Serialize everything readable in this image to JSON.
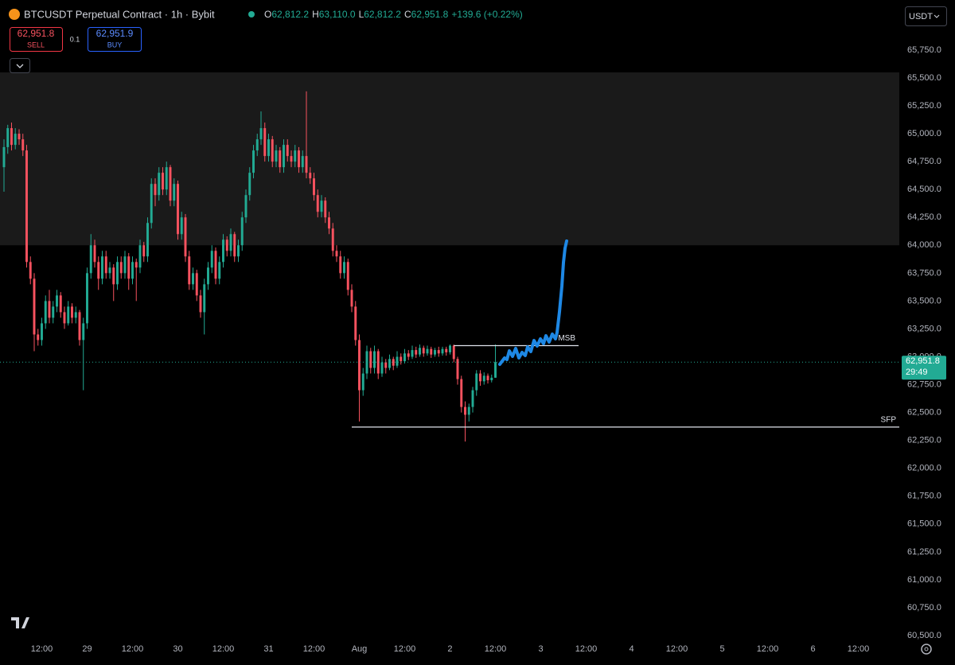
{
  "header": {
    "symbol": "BTCUSDT Perpetual Contract · 1h · Bybit",
    "o_label": "O",
    "o": "62,812.2",
    "h_label": "H",
    "h": "63,110.0",
    "l_label": "L",
    "l": "62,812.2",
    "c_label": "C",
    "c": "62,951.8",
    "change": "+139.6 (+0.22%)"
  },
  "trade": {
    "sell_price": "62,951.8",
    "sell": "SELL",
    "qty": "0.1",
    "buy_price": "62,951.9",
    "buy": "BUY"
  },
  "currency": "USDT",
  "chart_data": {
    "type": "candlestick",
    "up_color": "#22ab94",
    "down_color": "#f7525f",
    "ohlc": [
      [
        64700,
        64950,
        64480,
        64880
      ],
      [
        64880,
        65080,
        64820,
        65050
      ],
      [
        65050,
        65100,
        64850,
        64900
      ],
      [
        64900,
        65050,
        64860,
        65000
      ],
      [
        65000,
        65040,
        64900,
        64950
      ],
      [
        64950,
        65000,
        64800,
        64850
      ],
      [
        64850,
        64900,
        63800,
        63850
      ],
      [
        63850,
        63900,
        63650,
        63700
      ],
      [
        63700,
        63750,
        63050,
        63200
      ],
      [
        63200,
        63250,
        63100,
        63150
      ],
      [
        63150,
        63350,
        63100,
        63300
      ],
      [
        63300,
        63550,
        63250,
        63500
      ],
      [
        63500,
        63600,
        63300,
        63350
      ],
      [
        63350,
        63500,
        63300,
        63450
      ],
      [
        63450,
        63600,
        63400,
        63550
      ],
      [
        63550,
        63580,
        63350,
        63400
      ],
      [
        63400,
        63450,
        63250,
        63300
      ],
      [
        63300,
        63500,
        63280,
        63450
      ],
      [
        63450,
        63480,
        63300,
        63350
      ],
      [
        63350,
        63450,
        63300,
        63400
      ],
      [
        63400,
        63420,
        63100,
        63150
      ],
      [
        63150,
        63350,
        62700,
        63300
      ],
      [
        63300,
        63800,
        63250,
        63750
      ],
      [
        63750,
        64100,
        63700,
        64000
      ],
      [
        64000,
        64050,
        63800,
        63850
      ],
      [
        63850,
        63900,
        63600,
        63700
      ],
      [
        63700,
        63950,
        63650,
        63900
      ],
      [
        63900,
        63950,
        63700,
        63750
      ],
      [
        63750,
        63850,
        63700,
        63800
      ],
      [
        63800,
        63830,
        63500,
        63650
      ],
      [
        63650,
        63900,
        63600,
        63850
      ],
      [
        63850,
        63900,
        63700,
        63750
      ],
      [
        63750,
        63950,
        63700,
        63900
      ],
      [
        63900,
        63930,
        63600,
        63700
      ],
      [
        63700,
        63900,
        63650,
        63850
      ],
      [
        63850,
        63880,
        63500,
        63800
      ],
      [
        63800,
        64050,
        63750,
        64000
      ],
      [
        64000,
        64030,
        63850,
        63900
      ],
      [
        63900,
        64250,
        63850,
        64200
      ],
      [
        64200,
        64600,
        64150,
        64550
      ],
      [
        64550,
        64600,
        64350,
        64450
      ],
      [
        64450,
        64700,
        64400,
        64650
      ],
      [
        64650,
        64700,
        64450,
        64500
      ],
      [
        64500,
        64750,
        64450,
        64700
      ],
      [
        64700,
        64720,
        64350,
        64400
      ],
      [
        64400,
        64600,
        64350,
        64550
      ],
      [
        64550,
        64580,
        64050,
        64100
      ],
      [
        64100,
        64300,
        64050,
        64250
      ],
      [
        64250,
        64280,
        63850,
        63900
      ],
      [
        63900,
        63950,
        63600,
        63650
      ],
      [
        63650,
        63800,
        63600,
        63750
      ],
      [
        63750,
        63780,
        63500,
        63550
      ],
      [
        63550,
        63600,
        63350,
        63400
      ],
      [
        63400,
        63700,
        63200,
        63650
      ],
      [
        63650,
        63850,
        63600,
        63800
      ],
      [
        63800,
        64000,
        63750,
        63950
      ],
      [
        63950,
        63980,
        63650,
        63700
      ],
      [
        63700,
        63900,
        63650,
        63850
      ],
      [
        63850,
        64100,
        63800,
        64050
      ],
      [
        64050,
        64080,
        63900,
        63950
      ],
      [
        63950,
        64150,
        63900,
        64100
      ],
      [
        64100,
        64120,
        63850,
        63900
      ],
      [
        63900,
        64050,
        63850,
        64000
      ],
      [
        64000,
        64300,
        63950,
        64250
      ],
      [
        64250,
        64500,
        64200,
        64450
      ],
      [
        64450,
        64700,
        64400,
        64650
      ],
      [
        64650,
        64900,
        64600,
        64850
      ],
      [
        64850,
        65000,
        64800,
        64950
      ],
      [
        64950,
        65200,
        64900,
        65050
      ],
      [
        65050,
        65100,
        64750,
        64800
      ],
      [
        64800,
        65000,
        64750,
        64950
      ],
      [
        64950,
        64980,
        64700,
        64750
      ],
      [
        64750,
        64900,
        64700,
        64850
      ],
      [
        64850,
        64880,
        64650,
        64700
      ],
      [
        64700,
        64950,
        64650,
        64900
      ],
      [
        64900,
        64950,
        64750,
        64800
      ],
      [
        64800,
        64850,
        64700,
        64750
      ],
      [
        64750,
        64900,
        64700,
        64850
      ],
      [
        64850,
        64880,
        64650,
        64700
      ],
      [
        64700,
        64850,
        64650,
        64800
      ],
      [
        64800,
        65380,
        64600,
        64650
      ],
      [
        64650,
        64700,
        64550,
        64600
      ],
      [
        64600,
        64650,
        64400,
        64450
      ],
      [
        64450,
        64500,
        64250,
        64300
      ],
      [
        64300,
        64450,
        64250,
        64400
      ],
      [
        64400,
        64430,
        64200,
        64250
      ],
      [
        64250,
        64300,
        64100,
        64150
      ],
      [
        64150,
        64200,
        63900,
        63950
      ],
      [
        63950,
        64000,
        63850,
        63900
      ],
      [
        63900,
        63950,
        63700,
        63750
      ],
      [
        63750,
        63900,
        63700,
        63850
      ],
      [
        63850,
        63880,
        63550,
        63600
      ],
      [
        63600,
        63650,
        63400,
        63450
      ],
      [
        63450,
        63500,
        63100,
        63150
      ],
      [
        63150,
        63200,
        62420,
        62700
      ],
      [
        62700,
        62900,
        62650,
        62850
      ],
      [
        62850,
        63100,
        62800,
        63050
      ],
      [
        63050,
        63080,
        62850,
        62900
      ],
      [
        62900,
        63100,
        62850,
        63050
      ],
      [
        63050,
        63070,
        62800,
        62850
      ],
      [
        62850,
        63000,
        62820,
        62950
      ],
      [
        62950,
        62980,
        62850,
        62900
      ],
      [
        62900,
        63020,
        62880,
        62980
      ],
      [
        62980,
        63000,
        62880,
        62920
      ],
      [
        62920,
        63050,
        62900,
        63000
      ],
      [
        63000,
        63030,
        62930,
        62960
      ],
      [
        62960,
        63070,
        62940,
        63030
      ],
      [
        63030,
        63060,
        62970,
        63000
      ],
      [
        63000,
        63100,
        62980,
        63060
      ],
      [
        63060,
        63090,
        62990,
        63020
      ],
      [
        63020,
        63110,
        63000,
        63080
      ],
      [
        63080,
        63100,
        63000,
        63030
      ],
      [
        63030,
        63100,
        63010,
        63070
      ],
      [
        63070,
        63090,
        62990,
        63020
      ],
      [
        63020,
        63080,
        63000,
        63060
      ],
      [
        63060,
        63090,
        63000,
        63030
      ],
      [
        63030,
        63090,
        63010,
        63070
      ],
      [
        63070,
        63090,
        63010,
        63040
      ],
      [
        63040,
        63110,
        63020,
        63100
      ],
      [
        63100,
        63110,
        62950,
        62980
      ],
      [
        62980,
        63000,
        62750,
        62800
      ],
      [
        62800,
        62830,
        62500,
        62550
      ],
      [
        62550,
        62600,
        62240,
        62480
      ],
      [
        62480,
        62580,
        62420,
        62550
      ],
      [
        62550,
        62730,
        62500,
        62700
      ],
      [
        62700,
        62880,
        62650,
        62850
      ],
      [
        62850,
        62880,
        62740,
        62780
      ],
      [
        62780,
        62860,
        62750,
        62830
      ],
      [
        62830,
        62850,
        62760,
        62790
      ],
      [
        62790,
        62840,
        62770,
        62812.2
      ],
      [
        62812.2,
        63110,
        62812.2,
        62951.8
      ]
    ],
    "xlim": [
      -1.05,
      236.84
    ],
    "xticks": [
      {
        "value": 10,
        "label": "12:00"
      },
      {
        "value": 22,
        "label": "29"
      },
      {
        "value": 34,
        "label": "12:00"
      },
      {
        "value": 46,
        "label": "30"
      },
      {
        "value": 58,
        "label": "12:00"
      },
      {
        "value": 70,
        "label": "31"
      },
      {
        "value": 82,
        "label": "12:00"
      },
      {
        "value": 94,
        "label": "Aug"
      },
      {
        "value": 106,
        "label": "12:00"
      },
      {
        "value": 118,
        "label": "2"
      },
      {
        "value": 130,
        "label": "12:00"
      },
      {
        "value": 142,
        "label": "3"
      },
      {
        "value": 154,
        "label": "12:00"
      },
      {
        "value": 166,
        "label": "4"
      },
      {
        "value": 178,
        "label": "12:00"
      },
      {
        "value": 190,
        "label": "5"
      },
      {
        "value": 202,
        "label": "12:00"
      },
      {
        "value": 214,
        "label": "6"
      },
      {
        "value": 226,
        "label": "12:00"
      }
    ],
    "ylim": [
      60493,
      66199
    ],
    "yticks": [
      {
        "value": 65750,
        "label": "65,750.0"
      },
      {
        "value": 65500,
        "label": "65,500.0"
      },
      {
        "value": 65250,
        "label": "65,250.0"
      },
      {
        "value": 65000,
        "label": "65,000.0"
      },
      {
        "value": 64750,
        "label": "64,750.0"
      },
      {
        "value": 64500,
        "label": "64,500.0"
      },
      {
        "value": 64250,
        "label": "64,250.0"
      },
      {
        "value": 64000,
        "label": "64,000.0"
      },
      {
        "value": 63750,
        "label": "63,750.0"
      },
      {
        "value": 63500,
        "label": "63,500.0"
      },
      {
        "value": 63250,
        "label": "63,250.0"
      },
      {
        "value": 63000,
        "label": "63,000.0"
      },
      {
        "value": 62750,
        "label": "62,750.0"
      },
      {
        "value": 62500,
        "label": "62,500.0"
      },
      {
        "value": 62250,
        "label": "62,250.0"
      },
      {
        "value": 62000,
        "label": "62,000.0"
      },
      {
        "value": 61750,
        "label": "61,750.0"
      },
      {
        "value": 61500,
        "label": "61,500.0"
      },
      {
        "value": 61250,
        "label": "61,250.0"
      },
      {
        "value": 61000,
        "label": "61,000.0"
      },
      {
        "value": 60750,
        "label": "60,750.0"
      },
      {
        "value": 60500,
        "label": "60,500.0"
      }
    ],
    "zone": [
      64000,
      65550
    ],
    "annotations": [
      {
        "label": "MSB",
        "value": 63100,
        "x": [
          119,
          152
        ]
      },
      {
        "label": "SFP",
        "value": 62370,
        "x": [
          92,
          236.84
        ]
      }
    ],
    "last_price": {
      "value": 62951.8,
      "label": "62,951.8",
      "countdown": "29:49"
    }
  }
}
